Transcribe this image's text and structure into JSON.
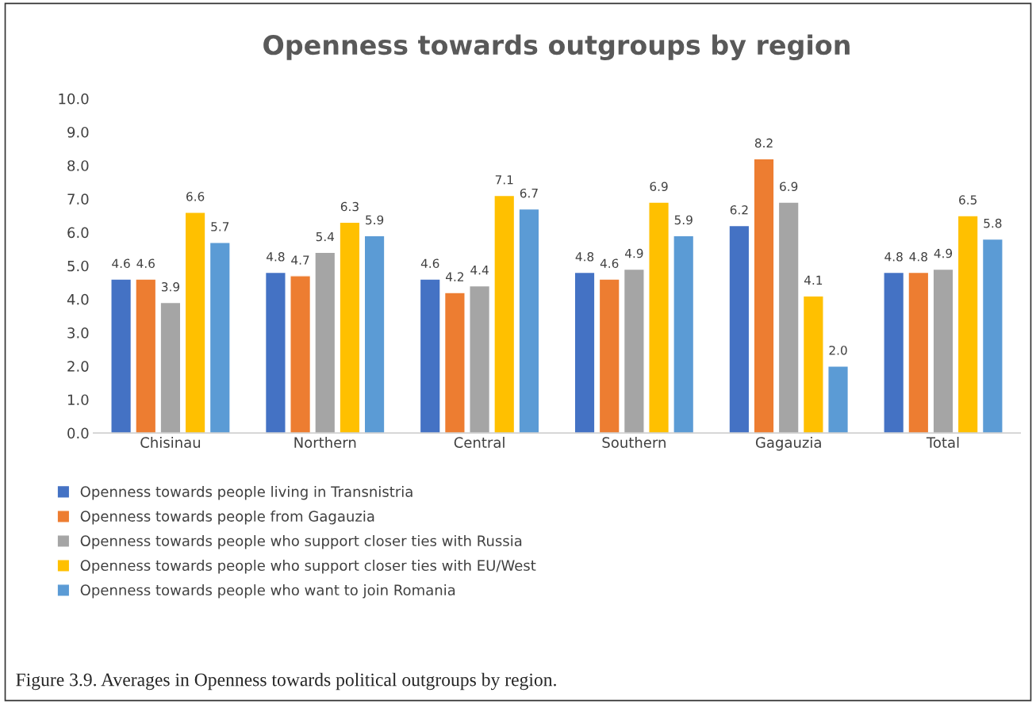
{
  "chart_data": {
    "type": "bar",
    "title": "Openness towards outgroups by region",
    "categories": [
      "Chisinau",
      "Northern",
      "Central",
      "Southern",
      "Gagauzia",
      "Total"
    ],
    "series": [
      {
        "name": "Openness towards people living in Transnistria",
        "color": "#4472c4",
        "values": [
          4.6,
          4.8,
          4.6,
          4.8,
          6.2,
          4.8
        ],
        "value_labels": [
          "4.6",
          "4.8",
          "4.6",
          "4.8",
          "6.2",
          "4.8"
        ]
      },
      {
        "name": "Openness towards people from Gagauzia",
        "color": "#ed7d31",
        "values": [
          4.6,
          4.7,
          4.2,
          4.6,
          8.2,
          4.8
        ],
        "value_labels": [
          "4.6",
          "4.7",
          "4.2",
          "4.6",
          "8.2",
          "4.8"
        ]
      },
      {
        "name": "Openness towards people who support closer ties with Russia",
        "color": "#a5a5a5",
        "values": [
          3.9,
          5.4,
          4.4,
          4.9,
          6.9,
          4.9
        ],
        "value_labels": [
          "3.9",
          "5.4",
          "4.4",
          "4.9",
          "6.9",
          "4.9"
        ]
      },
      {
        "name": "Openness towards people who support closer ties with EU/West",
        "color": "#ffc000",
        "values": [
          6.6,
          6.3,
          7.1,
          6.9,
          4.1,
          6.5
        ],
        "value_labels": [
          "6.6",
          "6.3",
          "7.1",
          "6.9",
          "4.1",
          "6.5"
        ]
      },
      {
        "name": "Openness towards people who want to join Romania",
        "color": "#5b9bd5",
        "values": [
          5.7,
          5.9,
          6.7,
          5.9,
          2.0,
          5.8
        ],
        "value_labels": [
          "5.7",
          "5.9",
          "6.7",
          "5.9",
          "2.0",
          "5.8"
        ]
      }
    ],
    "ylim": [
      0,
      10
    ],
    "yticks": [
      {
        "value": 0,
        "label": "0.0"
      },
      {
        "value": 1,
        "label": "1.0"
      },
      {
        "value": 2,
        "label": "2.0"
      },
      {
        "value": 3,
        "label": "3.0"
      },
      {
        "value": 4,
        "label": "4.0"
      },
      {
        "value": 5,
        "label": "5.0"
      },
      {
        "value": 6,
        "label": "6.0"
      },
      {
        "value": 7,
        "label": "7.0"
      },
      {
        "value": 8,
        "label": "8.0"
      },
      {
        "value": 9,
        "label": "9.0"
      },
      {
        "value": 10,
        "label": "10.0"
      }
    ],
    "grid": false,
    "legend": "bottom",
    "annotations": [
      "Figure 3.9. Averages in Openness towards political outgroups by region."
    ]
  }
}
